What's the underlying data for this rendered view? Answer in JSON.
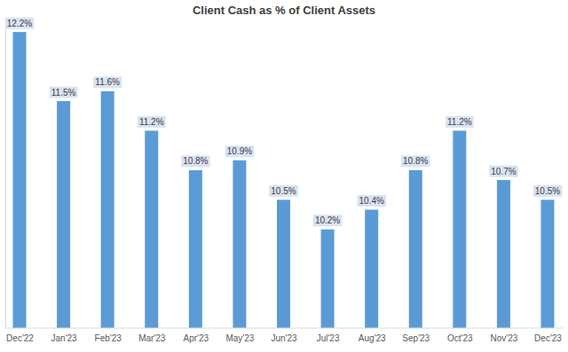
{
  "chart_data": {
    "type": "bar",
    "title": "Client Cash as % of Client Assets",
    "categories": [
      "Dec'22",
      "Jan'23",
      "Feb'23",
      "Mar'23",
      "Apr'23",
      "May'23",
      "Jun'23",
      "Jul'23",
      "Aug'23",
      "Sep'23",
      "Oct'23",
      "Nov'23",
      "Dec'23"
    ],
    "values": [
      12.2,
      11.5,
      11.6,
      11.2,
      10.8,
      10.9,
      10.5,
      10.2,
      10.4,
      10.8,
      11.2,
      10.7,
      10.5
    ],
    "value_labels": [
      "12.2%",
      "11.5%",
      "11.6%",
      "11.2%",
      "10.8%",
      "10.9%",
      "10.5%",
      "10.2%",
      "10.4%",
      "10.8%",
      "11.2%",
      "10.7%",
      "10.5%"
    ],
    "color": "#5b9bd5",
    "ylim": [
      9.2,
      12.3
    ],
    "grid": false,
    "data_labels": true,
    "tick_labels": "x"
  }
}
